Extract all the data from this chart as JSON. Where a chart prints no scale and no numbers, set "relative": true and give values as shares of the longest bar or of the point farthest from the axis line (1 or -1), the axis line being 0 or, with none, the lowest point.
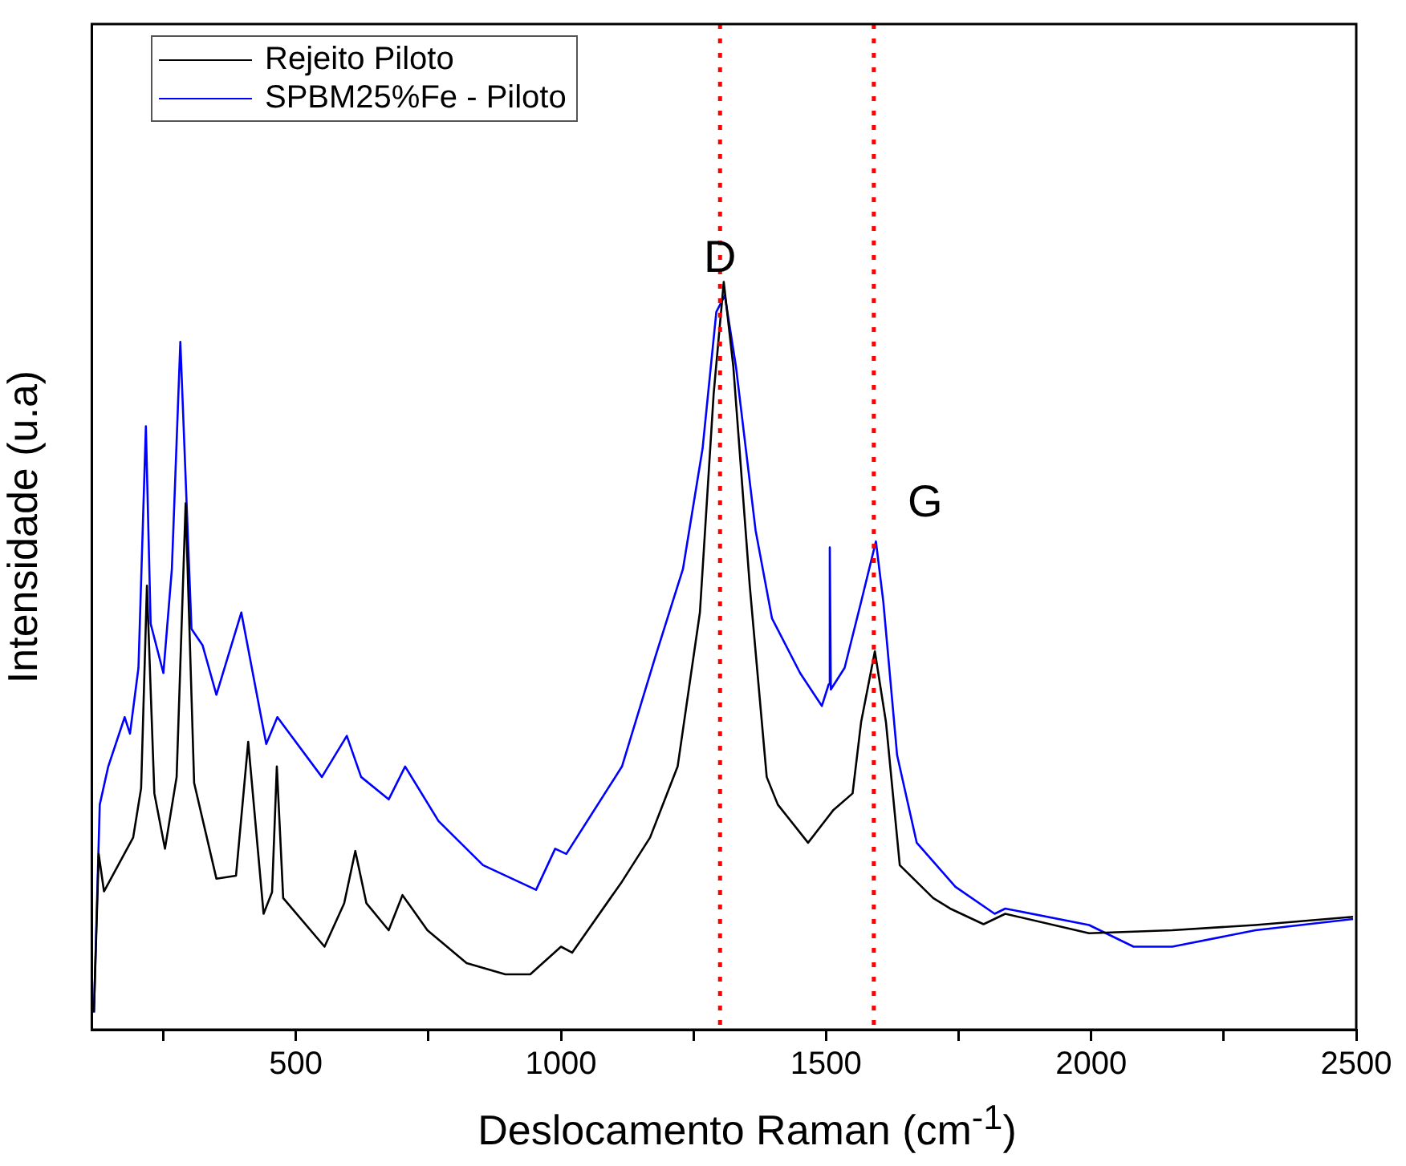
{
  "chart_data": {
    "type": "line",
    "xlabel": "Deslocamento Raman (cm$^{-1}$)",
    "ylabel": "Intensidade (u.a)",
    "relative": true,
    "xlim": [
      115,
      2500
    ],
    "xticks": [
      {
        "value": 250,
        "label": null
      },
      500,
      {
        "value": 750,
        "label": null
      },
      1000,
      {
        "value": 1250,
        "label": null
      },
      1500,
      {
        "value": 1750,
        "label": null
      },
      2000,
      {
        "value": 2250,
        "label": null
      },
      2500
    ],
    "grid": false,
    "legend": "top left",
    "marker": "none",
    "line_style": "solid",
    "series": [
      {
        "name": "Rejeito Piloto",
        "color": "#000000",
        "x": [
          119,
          128,
          138,
          193,
          208,
          219,
          233,
          253,
          275,
          292,
          308,
          350,
          387,
          410,
          439,
          455,
          464,
          476,
          554,
          591,
          612,
          633,
          675,
          701,
          748,
          822,
          895,
          942,
          1000,
          1021,
          1115,
          1168,
          1220,
          1262,
          1288,
          1307,
          1325,
          1356,
          1388,
          1409,
          1466,
          1514,
          1550,
          1566,
          1592,
          1613,
          1639,
          1702,
          1734,
          1797,
          1838,
          1996,
          2153,
          2310,
          2494
        ],
        "values": [
          0.023,
          0.235,
          0.185,
          0.257,
          0.323,
          0.594,
          0.316,
          0.242,
          0.338,
          0.704,
          0.33,
          0.202,
          0.206,
          0.385,
          0.155,
          0.184,
          0.352,
          0.176,
          0.111,
          0.169,
          0.239,
          0.169,
          0.133,
          0.18,
          0.133,
          0.089,
          0.074,
          0.074,
          0.111,
          0.103,
          0.198,
          0.257,
          0.352,
          0.558,
          0.851,
          1,
          0.887,
          0.594,
          0.338,
          0.301,
          0.25,
          0.294,
          0.316,
          0.411,
          0.506,
          0.411,
          0.22,
          0.176,
          0.162,
          0.141,
          0.155,
          0.129,
          0.133,
          0.14,
          0.151
        ]
      },
      {
        "name": "SPBM25%Fe - Piloto",
        "color": "#0000ff",
        "x": [
          119,
          130,
          146,
          177,
          187,
          203,
          217,
          226,
          250,
          266,
          282,
          303,
          324,
          350,
          397,
          444,
          465,
          549,
          596,
          623,
          675,
          706,
          769,
          853,
          953,
          989,
          1010,
          1115,
          1178,
          1230,
          1267,
          1293,
          1309,
          1330,
          1367,
          1398,
          1451,
          1492,
          1505,
          1507,
          1509,
          1535,
          1566,
          1594,
          1608,
          1634,
          1671,
          1744,
          1818,
          1838,
          1996,
          2080,
          2153,
          2310,
          2494
        ],
        "values": [
          0.023,
          0.301,
          0.352,
          0.418,
          0.396,
          0.484,
          0.807,
          0.543,
          0.477,
          0.616,
          0.92,
          0.536,
          0.514,
          0.448,
          0.558,
          0.382,
          0.418,
          0.338,
          0.393,
          0.338,
          0.308,
          0.352,
          0.279,
          0.22,
          0.187,
          0.242,
          0.235,
          0.352,
          0.499,
          0.616,
          0.777,
          0.96,
          0.982,
          0.887,
          0.668,
          0.55,
          0.477,
          0.433,
          0.462,
          0.645,
          0.455,
          0.484,
          0.572,
          0.653,
          0.572,
          0.367,
          0.25,
          0.191,
          0.155,
          0.162,
          0.14,
          0.111,
          0.111,
          0.133,
          0.148
        ]
      }
    ],
    "ref_lines": [
      {
        "axis": "x",
        "value": 1300,
        "color": "#ff0000",
        "line_style": "dotted"
      },
      {
        "axis": "x",
        "value": 1590,
        "color": "#ff0000",
        "line_style": "dotted"
      }
    ],
    "annotations": [
      {
        "text": "D",
        "x": 1300,
        "y": 1.03
      },
      "G"
    ]
  }
}
